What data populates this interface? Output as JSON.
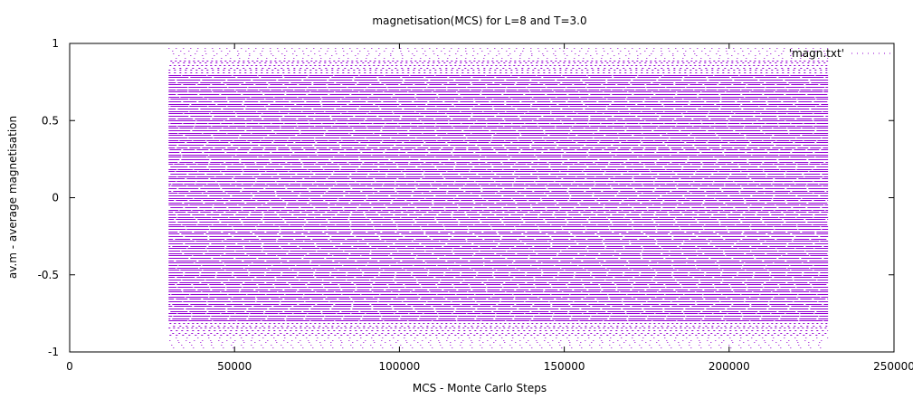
{
  "chart_data": {
    "type": "scatter",
    "title": "magnetisation(MCS) for L=8 and T=3.0",
    "xlabel": "MCS - Monte Carlo Steps",
    "ylabel": "av.m - average magnetisation",
    "xlim": [
      0,
      250000
    ],
    "ylim": [
      -1,
      1
    ],
    "xticks": [
      0,
      50000,
      100000,
      150000,
      200000,
      250000
    ],
    "yticks": [
      1,
      0.5,
      0,
      -0.5,
      -1
    ],
    "grid": false,
    "legend_position": "top-right",
    "series": [
      {
        "name": "'magn.txt'",
        "color": "#9400d3",
        "x_range": [
          30000,
          230000
        ],
        "level_step": 0.015625,
        "y_range": [
          -0.96875,
          0.96875
        ],
        "density": "dense horizontal bands at discrete levels, sparser near |m| = 1"
      }
    ]
  }
}
